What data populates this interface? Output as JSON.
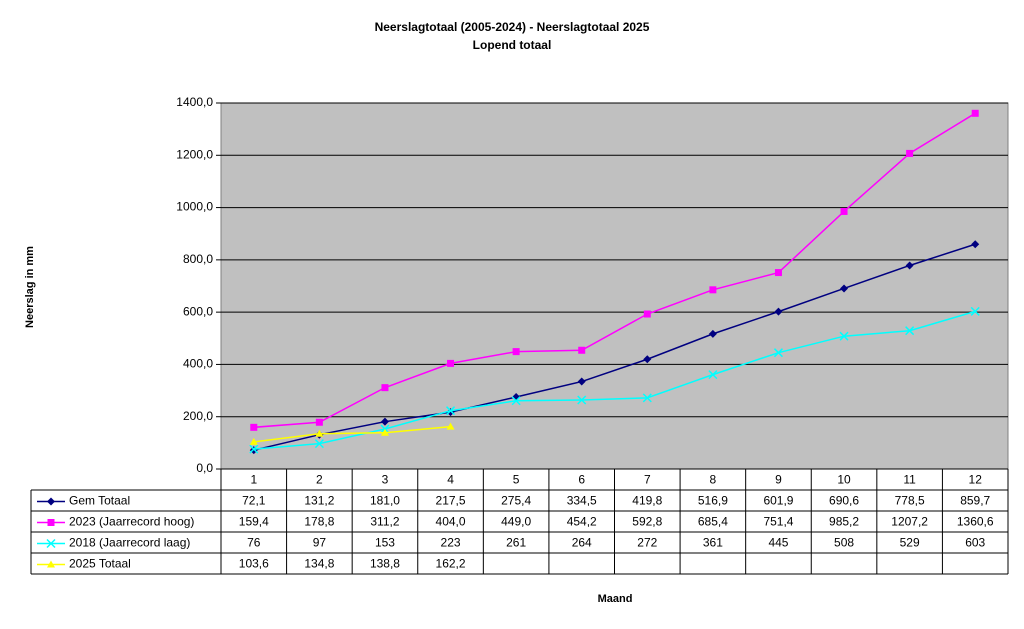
{
  "chart_data": {
    "type": "line",
    "title": "Neerslagtotaal (2005-2024)  - Neerslagtotaal 2025",
    "subtitle": "Lopend totaal",
    "y_label": "Neerslag in mm",
    "x_label": "Maand",
    "categories": [
      "1",
      "2",
      "3",
      "4",
      "5",
      "6",
      "7",
      "8",
      "9",
      "10",
      "11",
      "12"
    ],
    "ylim": [
      0,
      1400
    ],
    "yticks": [
      {
        "value": 0,
        "label": "0,0"
      },
      {
        "value": 200,
        "label": "200,0"
      },
      {
        "value": 400,
        "label": "400,0"
      },
      {
        "value": 600,
        "label": "600,0"
      },
      {
        "value": 800,
        "label": "800,0"
      },
      {
        "value": 1000,
        "label": "1000,0"
      },
      {
        "value": 1200,
        "label": "1200,0"
      },
      {
        "value": 1400,
        "label": "1400,0"
      }
    ],
    "grid": true,
    "series": [
      {
        "name": "Gem Totaal",
        "color": "#000080",
        "marker": "diamond",
        "values": [
          72.1,
          131.2,
          181.0,
          217.5,
          275.4,
          334.5,
          419.8,
          516.9,
          601.9,
          690.6,
          778.5,
          859.7
        ],
        "value_labels": [
          "72,1",
          "131,2",
          "181,0",
          "217,5",
          "275,4",
          "334,5",
          "419,8",
          "516,9",
          "601,9",
          "690,6",
          "778,5",
          "859,7"
        ]
      },
      {
        "name": "2023 (Jaarrecord hoog)",
        "color": "#ff00ff",
        "marker": "square",
        "values": [
          159.4,
          178.8,
          311.2,
          404.0,
          449.0,
          454.2,
          592.8,
          685.4,
          751.4,
          985.2,
          1207.2,
          1360.6
        ],
        "value_labels": [
          "159,4",
          "178,8",
          "311,2",
          "404,0",
          "449,0",
          "454,2",
          "592,8",
          "685,4",
          "751,4",
          "985,2",
          "1207,2",
          "1360,6"
        ]
      },
      {
        "name": "2018 (Jaarrecord laag)",
        "color": "#00ffff",
        "marker": "x",
        "values": [
          76,
          97,
          153,
          223,
          261,
          264,
          272,
          361,
          445,
          508,
          529,
          603
        ]
      },
      {
        "name": "2025 Totaal",
        "color": "#ffff00",
        "marker": "triangle",
        "values": [
          103.6,
          134.8,
          138.8,
          162.2,
          null,
          null,
          null,
          null,
          null,
          null,
          null,
          null
        ],
        "value_labels": [
          "103,6",
          "134,8",
          "138,8",
          "162,2",
          null,
          null,
          null,
          null,
          null,
          null,
          null,
          null
        ]
      }
    ]
  }
}
